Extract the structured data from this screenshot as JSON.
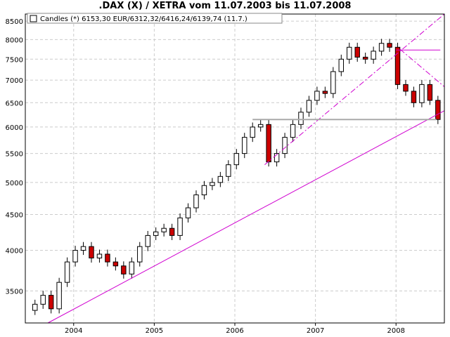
{
  "chart_data": {
    "type": "candlestick",
    "title": ".DAX (X) / XETRA vom 11.07.2003 bis 11.07.2008",
    "legend": {
      "label": "Candles (*) 6153,30 EUR/6312,32/6416,24/6139,74 (11.7.)",
      "placement": "top-left"
    },
    "scale": "log",
    "ylim": [
      3150,
      8700
    ],
    "xlim": [
      2003.4,
      2008.6
    ],
    "grid": true,
    "y_ticks": [
      3500,
      4000,
      4500,
      5000,
      5500,
      6000,
      6500,
      7000,
      7500,
      8000,
      8500
    ],
    "x_ticks": [
      {
        "label": "2004",
        "value": 2004.0
      },
      {
        "label": "2005",
        "value": 2005.0
      },
      {
        "label": "2006",
        "value": 2006.0
      },
      {
        "label": "2007",
        "value": 2007.0
      },
      {
        "label": "2008",
        "value": 2008.0
      }
    ],
    "series": [
      {
        "x": [
          2003.52,
          2003.62,
          2003.72,
          2003.82,
          2003.92,
          2004.02,
          2004.12,
          2004.22,
          2004.32,
          2004.42,
          2004.52,
          2004.62,
          2004.72,
          2004.82,
          2004.92,
          2005.02,
          2005.12,
          2005.22,
          2005.32,
          2005.42,
          2005.52,
          2005.62,
          2005.72,
          2005.82,
          2005.92,
          2006.02,
          2006.12,
          2006.22,
          2006.32,
          2006.42,
          2006.52,
          2006.62,
          2006.72,
          2006.82,
          2006.92,
          2007.02,
          2007.12,
          2007.22,
          2007.32,
          2007.42,
          2007.52,
          2007.62,
          2007.72,
          2007.82,
          2007.92,
          2008.02,
          2008.12,
          2008.22,
          2008.32,
          2008.42,
          2008.52
        ],
        "close": [
          3350,
          3450,
          3300,
          3600,
          3850,
          4000,
          4050,
          3900,
          3950,
          3850,
          3800,
          3700,
          3850,
          4050,
          4200,
          4250,
          4300,
          4200,
          4450,
          4600,
          4800,
          4950,
          5000,
          5100,
          5300,
          5500,
          5800,
          6000,
          6050,
          5350,
          5500,
          5800,
          6050,
          6300,
          6550,
          6750,
          6700,
          7200,
          7500,
          7800,
          7550,
          7500,
          7700,
          7900,
          7800,
          6900,
          6750,
          6500,
          6900,
          6550,
          6150
        ]
      }
    ],
    "annotations": [
      {
        "type": "trendline",
        "color": "#d000d0",
        "style": "solid",
        "from": [
          2003.68,
          3150
        ],
        "to": [
          2008.6,
          6330
        ]
      },
      {
        "type": "trendline",
        "color": "#d000d0",
        "style": "dashdot",
        "from": [
          2006.37,
          5300
        ],
        "to": [
          2008.6,
          8700
        ]
      },
      {
        "type": "trendline",
        "color": "#d000d0",
        "style": "dashdot",
        "from": [
          2008.05,
          7750
        ],
        "to": [
          2008.6,
          6850
        ]
      },
      {
        "type": "hline",
        "color": "#d000d0",
        "style": "solid",
        "from": [
          2008.0,
          7730
        ],
        "to": [
          2008.55,
          7730
        ]
      },
      {
        "type": "hline",
        "color": "#aaaaaa",
        "style": "solid",
        "from": [
          2006.22,
          6150
        ],
        "to": [
          2008.5,
          6150
        ]
      }
    ]
  },
  "colors": {
    "up_fill": "#ffffff",
    "down_fill": "#cc0000",
    "trendline": "#d000d0",
    "support": "#aaaaaa",
    "grid": "#cccccc"
  }
}
